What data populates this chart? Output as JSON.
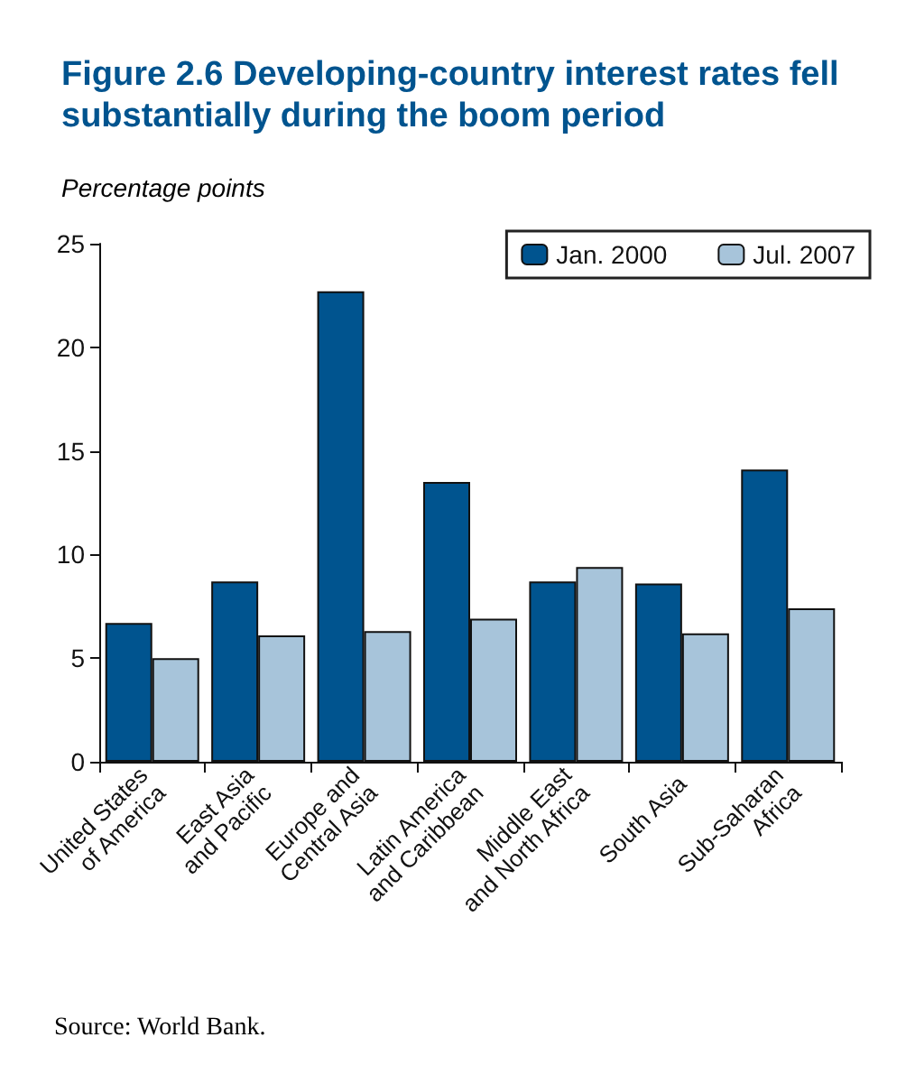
{
  "chart_data": {
    "type": "bar",
    "title": "Figure 2.6  Developing-country interest rates fell substantially during the boom period",
    "ylabel": "Percentage points",
    "categories": [
      "United States\nof America",
      "East Asia\nand Pacific",
      "Europe and\nCentral Asia",
      "Latin America\nand Caribbean",
      "Middle East\nand North Africa",
      "South Asia",
      "Sub-Saharan\nAfrica"
    ],
    "series": [
      {
        "name": "Jan. 2000",
        "color": "#00548f",
        "values": [
          6.7,
          8.7,
          22.7,
          13.5,
          8.7,
          8.6,
          14.1
        ]
      },
      {
        "name": "Jul. 2007",
        "color": "#a7c4da",
        "values": [
          5.0,
          6.1,
          6.3,
          6.9,
          9.4,
          6.2,
          7.4
        ]
      }
    ],
    "ylim": [
      0,
      25
    ],
    "yticks": [
      0,
      5,
      10,
      15,
      20,
      25
    ],
    "grid": false,
    "legend": "top right",
    "annotations": [
      "Source: World Bank."
    ]
  }
}
